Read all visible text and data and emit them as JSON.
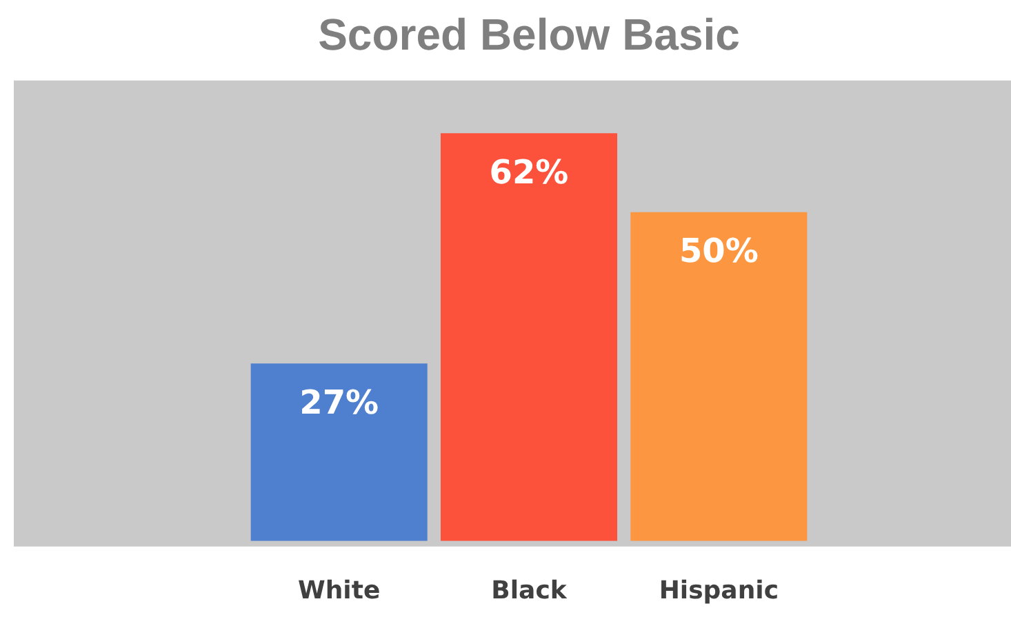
{
  "chart_data": {
    "type": "bar",
    "title": "Scored Below Basic",
    "categories": [
      "White",
      "Black",
      "Hispanic"
    ],
    "values": [
      27,
      62,
      50
    ],
    "colors": [
      "#4f7fcf",
      "#fc513b",
      "#fd9640"
    ],
    "value_labels": [
      "27%",
      "62%",
      "50%"
    ]
  }
}
